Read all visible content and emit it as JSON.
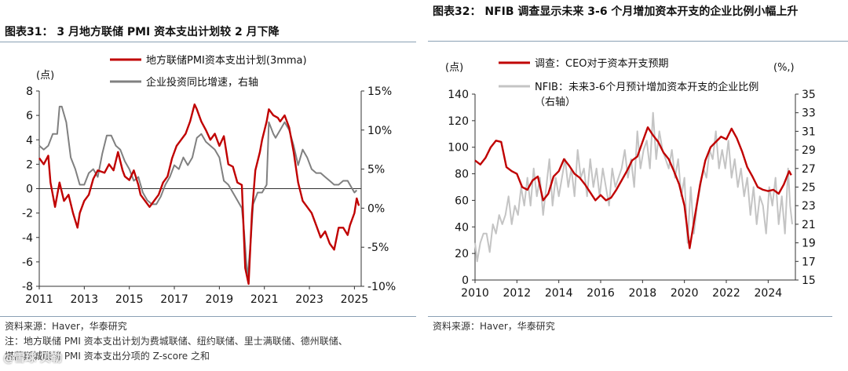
{
  "colors": {
    "red": "#c00000",
    "gray": "#808080",
    "lightgray": "#c4c4c4",
    "rule": "#8aa0b4"
  },
  "left": {
    "title": "图表31： 3 月地方联储 PMI 资本支出计划较 2 月下降",
    "source": "资料来源：Haver，华泰研究",
    "note_line1": "注：地方联储 PMI 资本支出计划为费城联储、纽约联储、里士满联储、德州联储、",
    "note_line2": "堪萨斯城联储 PMI 资本支出分项的 Z-score 之和",
    "watermark": "@雪球 贝勒",
    "chart_data": {
      "type": "line",
      "x_unit": "year",
      "xlim": [
        2011,
        2025.3
      ],
      "x_ticks": [
        "2011",
        "2013",
        "2015",
        "2017",
        "2019",
        "2021",
        "2023",
        "2025"
      ],
      "y_left": {
        "label": "(点)",
        "ylim": [
          -8,
          8
        ],
        "ticks": [
          "8",
          "6",
          "4",
          "2",
          "0",
          "-2",
          "-4",
          "-6",
          "-8"
        ]
      },
      "y_right": {
        "ylim": [
          -10,
          15
        ],
        "ticks": [
          "15%",
          "10%",
          "5%",
          "0%",
          "-5%",
          "-10%"
        ]
      },
      "legend": [
        "地方联储PMI资本支出计划(3mma)",
        "企业投资同比增速，右轴"
      ],
      "series": [
        {
          "name": "地方联储PMI资本支出计划(3mma)",
          "axis": "left",
          "color": "red",
          "x": [
            2011.0,
            2011.2,
            2011.4,
            2011.5,
            2011.7,
            2011.9,
            2012.1,
            2012.3,
            2012.5,
            2012.7,
            2012.8,
            2013.0,
            2013.2,
            2013.4,
            2013.6,
            2013.9,
            2014.1,
            2014.3,
            2014.5,
            2014.7,
            2014.8,
            2015.0,
            2015.2,
            2015.4,
            2015.5,
            2015.7,
            2015.9,
            2016.1,
            2016.3,
            2016.5,
            2016.7,
            2016.9,
            2017.1,
            2017.3,
            2017.5,
            2017.7,
            2017.9,
            2018.0,
            2018.2,
            2018.4,
            2018.6,
            2018.8,
            2019.0,
            2019.2,
            2019.4,
            2019.6,
            2019.8,
            2020.0,
            2020.15,
            2020.3,
            2020.45,
            2020.6,
            2020.8,
            2020.9,
            2021.1,
            2021.2,
            2021.4,
            2021.6,
            2021.7,
            2021.9,
            2022.1,
            2022.3,
            2022.5,
            2022.7,
            2022.9,
            2023.1,
            2023.3,
            2023.5,
            2023.7,
            2023.9,
            2024.1,
            2024.3,
            2024.5,
            2024.7,
            2024.8,
            2025.0,
            2025.1,
            2025.2
          ],
          "y": [
            2.5,
            2.0,
            2.7,
            0.5,
            -1.5,
            0.5,
            -1.0,
            -0.5,
            -2.0,
            -3.2,
            -2.0,
            -1.0,
            -0.5,
            0.8,
            1.5,
            1.3,
            2.0,
            1.5,
            3.0,
            1.5,
            1.0,
            0.7,
            1.5,
            0.3,
            -0.5,
            -1.0,
            -1.5,
            -1.0,
            -0.5,
            0.5,
            1.0,
            2.5,
            3.5,
            4.0,
            4.5,
            5.5,
            6.9,
            6.5,
            5.5,
            4.8,
            4.0,
            4.5,
            3.5,
            4.3,
            2.0,
            1.8,
            0.5,
            0.3,
            -6.5,
            -7.8,
            -2.0,
            1.5,
            3.0,
            4.0,
            5.5,
            6.5,
            6.0,
            5.8,
            5.5,
            6.0,
            5.0,
            3.0,
            0.5,
            -1.0,
            -1.5,
            -2.0,
            -3.0,
            -4.0,
            -3.5,
            -4.5,
            -5.0,
            -3.2,
            -3.2,
            -3.8,
            -3.0,
            -2.0,
            -0.8,
            -1.4
          ]
        },
        {
          "name": "企业投资同比增速，右轴",
          "axis": "right",
          "color": "gray",
          "x": [
            2011.0,
            2011.2,
            2011.4,
            2011.6,
            2011.8,
            2011.9,
            2012.0,
            2012.2,
            2012.4,
            2012.6,
            2012.8,
            2013.0,
            2013.2,
            2013.4,
            2013.6,
            2013.8,
            2014.0,
            2014.2,
            2014.4,
            2014.6,
            2014.8,
            2015.0,
            2015.2,
            2015.4,
            2015.6,
            2015.8,
            2016.0,
            2016.2,
            2016.4,
            2016.6,
            2016.8,
            2017.0,
            2017.2,
            2017.4,
            2017.6,
            2017.8,
            2018.0,
            2018.2,
            2018.4,
            2018.6,
            2018.8,
            2019.0,
            2019.2,
            2019.4,
            2019.6,
            2019.8,
            2020.0,
            2020.1,
            2020.25,
            2020.4,
            2020.5,
            2020.7,
            2020.9,
            2021.1,
            2021.2,
            2021.4,
            2021.5,
            2021.7,
            2021.9,
            2022.1,
            2022.3,
            2022.5,
            2022.7,
            2022.9,
            2023.1,
            2023.3,
            2023.5,
            2023.7,
            2023.9,
            2024.1,
            2024.3,
            2024.5,
            2024.7,
            2024.9,
            2025.0,
            2025.1
          ],
          "y": [
            8.0,
            7.5,
            8.0,
            9.5,
            9.5,
            13.0,
            13.0,
            11.0,
            6.5,
            5.0,
            3.0,
            3.0,
            4.5,
            5.0,
            4.0,
            7.0,
            9.3,
            9.3,
            8.0,
            7.5,
            6.0,
            5.0,
            3.5,
            4.0,
            2.0,
            1.0,
            0.5,
            0.5,
            1.5,
            3.0,
            4.0,
            5.5,
            5.0,
            6.5,
            5.5,
            6.5,
            9.0,
            9.5,
            8.5,
            8.0,
            7.5,
            6.5,
            3.5,
            3.0,
            2.0,
            1.0,
            0.0,
            -3.0,
            -9.0,
            -4.0,
            0.5,
            2.0,
            2.0,
            3.0,
            11.0,
            9.5,
            9.0,
            10.0,
            11.0,
            10.0,
            8.0,
            5.5,
            7.5,
            6.5,
            5.0,
            4.5,
            4.5,
            4.0,
            3.5,
            3.0,
            3.0,
            3.5,
            3.5,
            2.5,
            2.0,
            2.3
          ]
        }
      ]
    }
  },
  "right": {
    "title": "图表32： NFIB 调查显示未来 3-6 个月增加资本开支的企业比例小幅上升",
    "source": "资料来源：Haver，华泰研究",
    "chart_data": {
      "type": "line",
      "x_unit": "year",
      "xlim": [
        2010,
        2025.3
      ],
      "x_ticks": [
        "2010",
        "2012",
        "2014",
        "2016",
        "2018",
        "2020",
        "2022",
        "2024"
      ],
      "y_left": {
        "label": "(点)",
        "ylim": [
          0,
          140
        ],
        "ticks": [
          "140",
          "120",
          "100",
          "80",
          "60",
          "40",
          "20",
          "0"
        ]
      },
      "y_right": {
        "label": "(%,)",
        "ylim": [
          15,
          35
        ],
        "ticks": [
          "35",
          "33",
          "31",
          "29",
          "27",
          "25",
          "23",
          "21",
          "19",
          "17",
          "15"
        ]
      },
      "legend": [
        "调查：CEO对于资本开支预期",
        "NFIB：未来3-6个月预计增加资本开支的企业比例",
        "（右轴）"
      ],
      "series": [
        {
          "name": "调查：CEO对于资本开支预期",
          "axis": "left",
          "color": "red",
          "x": [
            2010.0,
            2010.25,
            2010.5,
            2010.75,
            2011.0,
            2011.25,
            2011.5,
            2011.75,
            2012.0,
            2012.25,
            2012.5,
            2012.75,
            2013.0,
            2013.25,
            2013.5,
            2013.75,
            2014.0,
            2014.25,
            2014.5,
            2014.75,
            2015.0,
            2015.25,
            2015.5,
            2015.75,
            2016.0,
            2016.25,
            2016.5,
            2016.75,
            2017.0,
            2017.25,
            2017.5,
            2017.75,
            2018.0,
            2018.25,
            2018.5,
            2018.75,
            2019.0,
            2019.25,
            2019.5,
            2019.75,
            2020.0,
            2020.25,
            2020.5,
            2020.75,
            2021.0,
            2021.25,
            2021.5,
            2021.75,
            2022.0,
            2022.25,
            2022.5,
            2022.75,
            2023.0,
            2023.25,
            2023.5,
            2023.75,
            2024.0,
            2024.25,
            2024.5,
            2024.75,
            2025.0,
            2025.1
          ],
          "y": [
            90,
            87,
            92,
            100,
            105,
            104,
            85,
            82,
            80,
            70,
            68,
            75,
            78,
            60,
            65,
            78,
            82,
            91,
            86,
            80,
            77,
            72,
            66,
            60,
            64,
            60,
            62,
            68,
            75,
            82,
            90,
            93,
            104,
            115,
            109,
            104,
            96,
            91,
            82,
            72,
            56,
            24,
            48,
            72,
            90,
            100,
            104,
            108,
            106,
            114,
            107,
            97,
            85,
            78,
            70,
            68,
            67,
            68,
            65,
            72,
            82,
            79
          ]
        },
        {
          "name": "NFIB：未来3-6个月预计增加资本开支的企业比例",
          "axis": "right",
          "color": "lightgray",
          "x": [
            2010.0,
            2010.1,
            2010.25,
            2010.4,
            2010.55,
            2010.7,
            2010.85,
            2011.0,
            2011.15,
            2011.3,
            2011.45,
            2011.6,
            2011.75,
            2011.9,
            2012.05,
            2012.2,
            2012.35,
            2012.5,
            2012.65,
            2012.8,
            2012.95,
            2013.1,
            2013.25,
            2013.4,
            2013.55,
            2013.7,
            2013.85,
            2014.0,
            2014.15,
            2014.3,
            2014.45,
            2014.6,
            2014.75,
            2014.9,
            2015.05,
            2015.2,
            2015.35,
            2015.5,
            2015.65,
            2015.8,
            2015.95,
            2016.1,
            2016.25,
            2016.4,
            2016.55,
            2016.7,
            2016.85,
            2017.0,
            2017.15,
            2017.3,
            2017.45,
            2017.6,
            2017.75,
            2017.9,
            2018.05,
            2018.2,
            2018.35,
            2018.5,
            2018.65,
            2018.8,
            2018.95,
            2019.1,
            2019.25,
            2019.4,
            2019.55,
            2019.7,
            2019.85,
            2020.0,
            2020.15,
            2020.3,
            2020.45,
            2020.6,
            2020.75,
            2020.9,
            2021.05,
            2021.2,
            2021.35,
            2021.5,
            2021.65,
            2021.8,
            2021.95,
            2022.1,
            2022.25,
            2022.4,
            2022.55,
            2022.7,
            2022.85,
            2023.0,
            2023.15,
            2023.3,
            2023.45,
            2023.6,
            2023.75,
            2023.9,
            2024.05,
            2024.2,
            2024.35,
            2024.5,
            2024.65,
            2024.8,
            2024.95,
            2025.05,
            2025.15
          ],
          "y": [
            19,
            17,
            19,
            20,
            20,
            18,
            21,
            20,
            22,
            21,
            22,
            24,
            21,
            23,
            22,
            25,
            23,
            26,
            23,
            27,
            24,
            26,
            22,
            25,
            28,
            23,
            26,
            24,
            26,
            28,
            25,
            27,
            24,
            29,
            26,
            27,
            24,
            28,
            25,
            27,
            24,
            27,
            25,
            23,
            27,
            25,
            26,
            27,
            29,
            26,
            28,
            25,
            31,
            27,
            29,
            30,
            27,
            33,
            28,
            31,
            29,
            28,
            27,
            29,
            26,
            28,
            24,
            26,
            19,
            25,
            20,
            23,
            25,
            27,
            26,
            29,
            28,
            31,
            27,
            29,
            27,
            30,
            26,
            28,
            25,
            27,
            24,
            26,
            22,
            25,
            21,
            24,
            23,
            20,
            25,
            23,
            26,
            21,
            24,
            20,
            27,
            23,
            21
          ]
        }
      ]
    }
  }
}
